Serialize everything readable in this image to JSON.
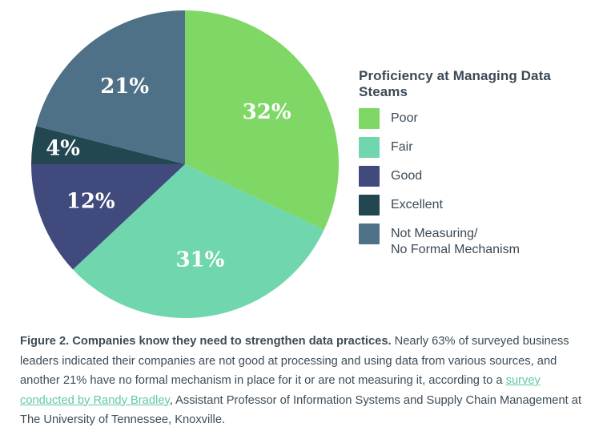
{
  "page": {
    "background": "#ffffff"
  },
  "chart_data": {
    "type": "pie",
    "title": "Proficiency at Managing Data Steams",
    "start_angle_deg": 0,
    "direction": "clockwise",
    "legend_position": "right",
    "label_color": "#ffffff",
    "slices": [
      {
        "label": "Poor",
        "value": 32,
        "display": "32%",
        "color": "#7FD765",
        "label_r": 0.63
      },
      {
        "label": "Fair",
        "value": 31,
        "display": "31%",
        "color": "#6FD6AD",
        "label_r": 0.63
      },
      {
        "label": "Good",
        "value": 12,
        "display": "12%",
        "color": "#414A7D",
        "label_r": 0.66
      },
      {
        "label": "Excellent",
        "value": 4,
        "display": "4%",
        "color": "#234750",
        "label_r": 0.8
      },
      {
        "label": "Not Measuring/\nNo Formal Mechanism",
        "value": 21,
        "display": "21%",
        "color": "#4E7187",
        "label_r": 0.64
      }
    ]
  },
  "legend": {
    "title": "Proficiency at Managing Data Steams"
  },
  "caption": {
    "lead": "Figure 2. Companies know they need to strengthen data practices.",
    "text_before_link": " Nearly 63% of surveyed business leaders indicated their companies are not good at processing and using data from various sources, and another 21% have no formal mechanism in place for it or are not measuring it, according to a ",
    "link_text": "survey conducted by Randy Bradley",
    "text_after_link": ", Assistant Professor of Information Systems and Supply Chain Management at The University of Tennessee, Knoxville.",
    "link_color": "#62C9A7",
    "text_color": "#3E4C57"
  }
}
